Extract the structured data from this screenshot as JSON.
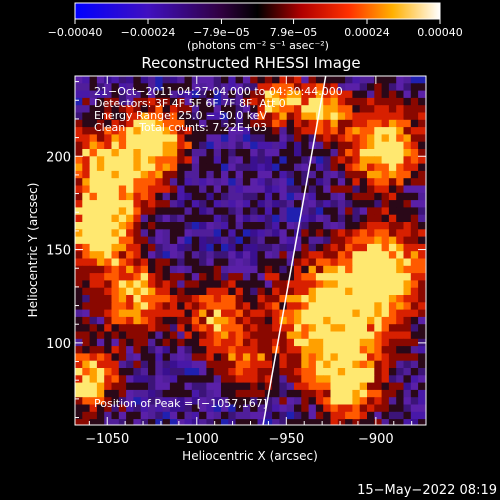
{
  "chart_data": {
    "type": "heatmap",
    "title": "Reconstructed RHESSI Image",
    "xlabel": "Heliocentric X (arcsec)",
    "ylabel": "Heliocentric Y (arcsec)",
    "xlim": [
      -1068,
      -872
    ],
    "ylim": [
      56,
      243
    ],
    "xticks": [
      -1050,
      -1000,
      -950,
      -900
    ],
    "xtick_labels": [
      "−1050",
      "−1000",
      "−950",
      "−900"
    ],
    "yticks": [
      100,
      150,
      200
    ],
    "ytick_labels": [
      "100",
      "150",
      "200"
    ],
    "colorbar": {
      "range": [
        -0.0004,
        0.0004
      ],
      "ticks": [
        -0.0004,
        -0.00024,
        -7.9e-05,
        7.9e-05,
        0.00024,
        0.0004
      ],
      "tick_labels": [
        "−0.00040",
        "−0.00024",
        "−7.9e−05",
        "7.9e−05",
        "0.00024",
        "0.00040"
      ],
      "unit_label": "(photons cm⁻² s⁻¹ asec⁻²)",
      "colormap": "blue-black-red-yellow-white"
    },
    "annotations": [
      "21−Oct−2011 04:27:04.000 to 04:30:44.000",
      "Detectors: 3F 4F 5F 6F 7F 8F, Att 0",
      "Energy Range: 25.0 − 50.0 keV",
      "Clean    Total counts: 7.22E+03"
    ],
    "peak_label": "Position of Peak = [−1057,167]",
    "limb_line": {
      "x": [
        -963,
        -928
      ],
      "y": [
        56,
        243
      ]
    },
    "hot_regions": [
      {
        "x": -1045,
        "y": 195,
        "r": 24,
        "level": 0.9
      },
      {
        "x": -1055,
        "y": 160,
        "r": 18,
        "level": 1.0
      },
      {
        "x": -1020,
        "y": 210,
        "r": 16,
        "level": 0.75
      },
      {
        "x": -1035,
        "y": 125,
        "r": 20,
        "level": 0.7
      },
      {
        "x": -1060,
        "y": 80,
        "r": 16,
        "level": 0.85
      },
      {
        "x": -990,
        "y": 115,
        "r": 18,
        "level": 0.6
      },
      {
        "x": -925,
        "y": 110,
        "r": 32,
        "level": 0.95
      },
      {
        "x": -895,
        "y": 140,
        "r": 22,
        "level": 0.85
      },
      {
        "x": -895,
        "y": 205,
        "r": 22,
        "level": 0.85
      },
      {
        "x": -930,
        "y": 225,
        "r": 14,
        "level": 0.7
      },
      {
        "x": -915,
        "y": 75,
        "r": 16,
        "level": 0.7
      },
      {
        "x": -955,
        "y": 230,
        "r": 14,
        "level": 0.65
      },
      {
        "x": -975,
        "y": 90,
        "r": 14,
        "level": 0.5
      }
    ]
  },
  "footer_date": "15−May−2022 08:19"
}
